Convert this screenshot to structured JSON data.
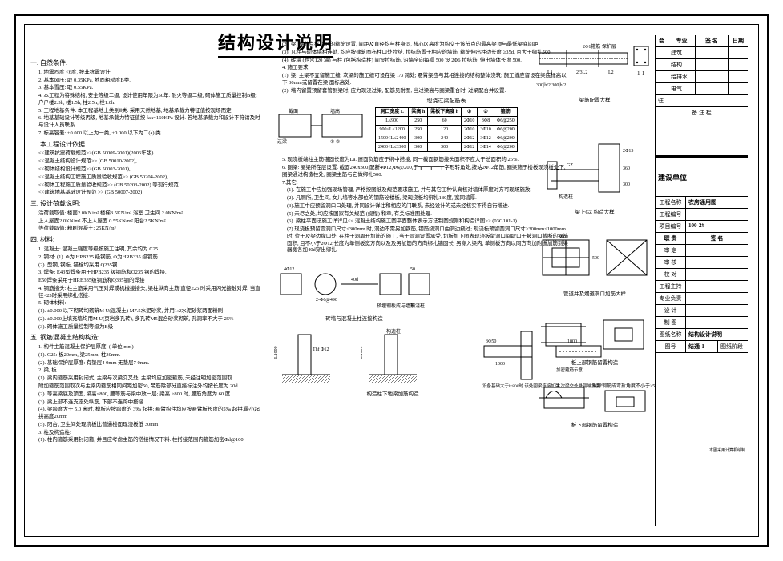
{
  "title": "结构设计说明",
  "sections": {
    "s1": {
      "h": "一. 自然条件:",
      "i": [
        "1. 地震烈度 <6度, 按非抗震设计.",
        "2. 基本风压: 取 0.35KPa, 地面粗糙度B类.",
        "3. 基本雪压: 取 0.55KPa.",
        "4. 本工程为特殊结构, 安全等级二级, 设计使用年限为50年. 耐火等级二级, 砌体施工质量控制B级; 户户楼2.5h, 楼1.5h, 柱2.5h, 栏1.0h.",
        "5. 工程地基条件: 本工程基地土类别Ⅱ类. 采用天然地基, 地基承载力特征值按现场而定.",
        "6. 地基基础设计等级丙级, 地基承载力特征值按  fak=160KPa 设计. 若地基承载力和设计不符请及时与设计人员联系.",
        "7. 标高容差: ±0.000 以上为一类, ±0.000 以下为二(a) 类."
      ]
    },
    "s2": {
      "h": "二. 本工程设计依据",
      "i": [
        "<<建筑抗震荷载规范>>(GB 50009-2001)(2006年版)",
        "<<混凝土结构设计规范>> (GB 50010-2002),",
        "<<砌体结构设计规范>>(GB 50003-2001),",
        "<<混凝土结构工程施工质量验收规范>>  (GB 50204-2002),",
        "<<砌体工程施工质量验收规范>>  (GB 50203-2002) 等现行规范.",
        "<<建筑地基基础设计规范 >> (GB 50007-2002)"
      ]
    },
    "s3": {
      "h": "三. 设计荷载说明:",
      "i": [
        "活荷载取值:  楼面2.0KN/m²  楼梯3.5KN/m²  浴室.卫生间  2.0KN/m²",
        "           上人屋面2.0KN/m² 不上人屋面 0.55KN/m² 阳台2.5KN/m²",
        "等荷载取值:   粉刷混凝土: 25KN/m³"
      ]
    },
    "s4": {
      "h": "四. 材料:",
      "i": [
        "1. 混凝土: 混凝土强度等级按施工注明, 其余均为 C25",
        "2. 钢材: (1). Φ为 HPB235 级钢筋, Φ为HRB335 级钢筋",
        "         (2). 型钢, 钢板, 锚栓均采用 Q235钢",
        "",
        "3. 焊条:  E43型焊条用于HPB235 级钢筋和Q235 钢的焊接.",
        "         E50焊条采用于HRB335级钢筋和Q335钢的焊接",
        "4. 钢筋接头: 柱主筋采用气压对焊或机械接接头, 梁柱纵向主筋 直径≥25 时采用闪光接触对焊, 当直径<25时采用绑扎搭接.",
        "5. 砌体材料:",
        "(1). ±0.000 以下砌砖均砌筑M U(混凝土) M7.5水泥砂浆, 并用1:2水泥砂浆两面粉刷",
        "(2). ±0.000上填充墙均用M U(页岩多孔砖), 多孔砖M5混合砂浆砌筑, 孔洞率不大于 25%",
        "(3). 砌体施工质量控制等级为B级"
      ]
    },
    "s5": {
      "h": "五. 钢筋混凝土结构构造:",
      "i": [
        "1. 构件主筋混凝土保护层厚度: ( 单位 mm)",
        "  (1).  C25:  板20mm, 梁25mm, 柱30mm.",
        "  (2).  基础保护层厚度: 有垫层4 0mm  无垫层7 0mm.",
        "2. 梁, 板",
        "  (1). 梁内箍筋采用封闭式, 主梁与次梁交叉处, 主梁均应加密箍筋, 未经注明加密范围取",
        "       附加箍筋范围取次与主梁内箍筋相同间距加密50, 吊筋除部分直接标注外均按长度为 20d.",
        "  (2). 等高梁底及顶面, 梁高<800, 腰等筋与梁中放一层; 梁高 ≥800 时, 腰筋角度为 60 度.",
        "  (3). 梁上部不连支座处纵筋, 下部不连跨中搭接.",
        "  (4). 梁跨度大于 5.0 米时, 模板应按跨度的 3‰ 起拱; 悬臂构件均应按悬臂板长度的5‰ 起拱,最小起拱高度20mm",
        "  (5). 阳台, 卫生间处现浇板比普通楼面现浇板低 30mm",
        "",
        "3. 柱及构造柱:",
        "  (1). 柱内箍筋采用封闭箍, 并且应考虑主筋的搭接情况下料. 柱搭接范围内箍筋加密Φd@100"
      ]
    },
    "r1": {
      "i": [
        "(2). 梁, 柱节点核心区的箍筋设置, 间距及直径均与柱身同, 核心区高度为构交于该节点的最高梁顶与最低梁底间距.",
        "(3). 凡柱与砌体墙相连处, 均应按建筑图布柱口处拉结, 拉结筋置于相应的墙筋, 箍筋伸出柱边长度 ≥35d, 且大于绑扎500.",
        "(4). 砖墙 (也含120 墙) 与柱 (包括构造柱) 间设拉结筋, 沿墙全向每隔 500 设 2Φ6 拉结筋, 伸出墙体长度 500.",
        "4. 施工要求:",
        "(1). 梁: 主梁不宜留施工缝; 次梁的施工缝可设在梁 1/3 跨处; 悬臂梁应与其相连接的结构整体浇筑; 施工缝应留设在梁底标高以下 30mm或留置在梁 面标高处.",
        "(2). 墙内留置预留套管到梁时, 应力现浇过梁, 配筋见附图; 当过梁高与圈梁重合时, 过梁配合并设置."
      ]
    },
    "table": {
      "title": "现浇过梁配筋表",
      "cols": [
        "洞口宽度 L",
        "梁高 h",
        "梁板下高度 h",
        "①",
        "②",
        "箍筋"
      ],
      "rows": [
        [
          "L≤900",
          "250",
          "60",
          "2Φ10",
          "3Φ8",
          "Φ6@250"
        ],
        [
          "900<L≤1200",
          "250",
          "120",
          "2Φ10",
          "3Φ10",
          "Φ6@200"
        ],
        [
          "1500<L≤2400",
          "300",
          "240",
          "2Φ12",
          "3Φ12",
          "Φ6@200"
        ],
        [
          "2400<L≤3300",
          "300",
          "300",
          "2Φ12",
          "3Φ14",
          "Φ6@200"
        ]
      ]
    },
    "r2": {
      "i": [
        "5. 现浇板端柱主筋锚固长度为La. 屋面负筋应于绑中搭接, 同一截面钢筋接头面积不应大于总面积的 25%.",
        "6. 圈梁: 圈梁所在层设置. 截面240x300,配断4Φ12,Φ6@200,于┳━┳━┳字形转角处,按站2Φ12角筋, 圈梁施于楼板现浇板处下, 圈梁通过构造柱处, 圈梁主筋与它做绑扎500.",
        "7.其它:"
      ]
    },
    "r3": {
      "i": [
        "(1). 在施工中应加强现场管理, 严格按图纸及规范要求施工, 并与其它工种认真核对墙体厚度对方可现场施放.",
        "(2). 凡厕所, 卫生间, 女儿墙等水部位的钢筋砼楼板, 梁现浇板均绑扎180度, 宽同墙厚.",
        "(3).施工中应预留洞口口处理, 并同设计详注和相应的门联系, 未经设计的或未经核实不得自行增进.",
        "(5) 未尽之处, 均应按国家有关规范 (规程) 和章, 有关标准图处理.",
        "(6). 梁柱平面法施工详详见<< 混凝土结构施工图平面整体表示方法制图规则和构造详图>>.(03G101-1).",
        "(7) 现浇板预留圆洞口尺寸≤300mm 时, 洞边不需另加钢筋, 钢筋绕洞口由洞边绕过; 现浇板预留圆洞口尺寸>300mm≤1000mm时, 位于及梁边缘口处, 在柱于洞周开加筋的施工, 当于圆洞设置承受, 切板加下图表现浇板留洞口间取口于被洞口截断的钢筋面积, 且不小于2Φ12,长度为单侧板宽方向以及及另加筋的方向绑扎锚固长. 另穿入梁内, 单侧板方向以同方向加附板加筋到梁器宽各加40d穿出绑扎"
      ]
    }
  },
  "diagrams": {
    "beam_sec": {
      "cap": "梁筋配置大样",
      "dim": "1-1",
      "labels": [
        "2Φ1箍筋",
        "保护层",
        "L1",
        "2/3L2",
        "L2",
        "300|h/2",
        "300|h/2"
      ]
    },
    "gz": {
      "cap": "梁上GZ 构造大样",
      "labels": [
        "2Φ15",
        "360",
        "300",
        "构造柱"
      ]
    },
    "pipe": {
      "cap": "管道井及烟道洞口加筋大样",
      "dims": [
        "500",
        "500"
      ]
    },
    "top_hole": {
      "cap": "板上部钢筋留置构造"
    },
    "bot_hole": {
      "cap": "板下部钢筋留置构造",
      "dim": "≥5d"
    },
    "brick": {
      "cap": "砖墙与混凝土柱连接构造",
      "labels": [
        "4Φ12",
        "2-Φ6@490",
        "40d",
        "预埋钢板成与墙筋",
        "现浇柱",
        "L=500",
        "4-Φ6@4f0",
        "50"
      ]
    },
    "col_beam": {
      "cap": "构造柱下地梁加筋构造",
      "labels": [
        "L1000",
        "Thf Φ12",
        "L1000",
        "构造柱",
        "该处加"
      ]
    },
    "corner": {
      "labels": [
        "3Φ50",
        "1000",
        "1000",
        "设备基础大于h:800时",
        "该处圈梁连接加强",
        "加密箍筋示意",
        "主次梁交处悬臂端加强"
      ]
    }
  },
  "titleblock": {
    "head": [
      "会",
      "专业",
      "签 名",
      "日期"
    ],
    "disciplines": [
      "建筑",
      "结构",
      "给排水",
      "电气"
    ],
    "zhu": "驻",
    "beizhulan": "备 注 栏",
    "jianshe": "建设单位",
    "proj_l": "工程名称",
    "proj_v": "农房通用图",
    "num_l": "工程编号",
    "num_v": "",
    "item_l": "项目编号",
    "item_v": "100-2#",
    "sig_head": [
      "职 责",
      "签 名"
    ],
    "sigs": [
      "审 定",
      "审 核",
      "校 对",
      "工程主持",
      "专业负责",
      "设 计",
      "制 图"
    ],
    "dwg_l": "图纸名称",
    "dwg_v": "结构设计说明",
    "sheet_l": "图号",
    "sheet_v": "结通-1",
    "stage": "图纸阶段",
    "foot": "本图采用计算机绘制"
  },
  "colors": {
    "line": "#000000",
    "bg": "#ffffff"
  }
}
